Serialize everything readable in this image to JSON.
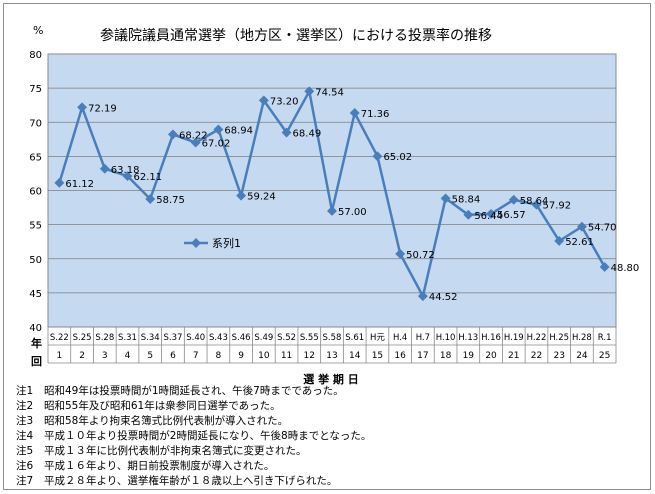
{
  "chart_data": {
    "type": "line",
    "title": "参議院議員通常選挙（地方区・選挙区）における投票率の推移",
    "ylabel": "%",
    "xlabel": "選 挙 期 日",
    "ylim": [
      40,
      80
    ],
    "yticks": [
      40,
      45,
      50,
      55,
      60,
      65,
      70,
      75,
      80
    ],
    "grid": true,
    "legend_position": "center-left",
    "row_header_top": "年",
    "row_header_bottom": "回",
    "categories": [
      "S.22",
      "S.25",
      "S.28",
      "S.31",
      "S.34",
      "S.37",
      "S.40",
      "S.43",
      "S.46",
      "S.49",
      "S.52",
      "S.55",
      "S.58",
      "S.61",
      "H元",
      "H.4",
      "H.7",
      "H.10",
      "H.13",
      "H.16",
      "H.19",
      "H.22",
      "H.25",
      "H.28",
      "R.1"
    ],
    "sessions": [
      "1",
      "2",
      "3",
      "4",
      "5",
      "6",
      "7",
      "8",
      "9",
      "10",
      "11",
      "12",
      "13",
      "14",
      "15",
      "16",
      "17",
      "18",
      "19",
      "20",
      "21",
      "22",
      "23",
      "24",
      "25"
    ],
    "series": [
      {
        "name": "系列1",
        "values": [
          61.12,
          72.19,
          63.18,
          62.11,
          58.75,
          68.22,
          67.02,
          68.94,
          59.24,
          73.2,
          68.49,
          74.54,
          57.0,
          71.36,
          65.02,
          50.72,
          44.52,
          58.84,
          56.44,
          56.57,
          58.64,
          57.92,
          52.61,
          54.7,
          48.8
        ],
        "labels": [
          "61.12",
          "72.19",
          "63.18",
          "62.11",
          "58.75",
          "68.22",
          "67.02",
          "68.94",
          "59.24",
          "73.20",
          "68.49",
          "74.54",
          "57.00",
          "71.36",
          "65.02",
          "50.72",
          "44.52",
          "58.84",
          "56.44",
          "56.57",
          "58.64",
          "57.92",
          "52.61",
          "54.70",
          "48.80"
        ],
        "color": "#4a7ebb"
      }
    ],
    "plot_bg": "#c5d9f1",
    "grid_color": "#7f7f7f"
  },
  "notes": [
    {
      "id": "注1",
      "text": "昭和49年は投票時間が1時間延長され、午後7時までであった。"
    },
    {
      "id": "注2",
      "text": "昭和55年及び昭和61年は衆参同日選挙であった。"
    },
    {
      "id": "注3",
      "text": "昭和58年より拘束名簿式比例代表制が導入された。"
    },
    {
      "id": "注4",
      "text": "平成１０年より投票時間が2時間延長になり、午後8時までとなった。"
    },
    {
      "id": "注5",
      "text": "平成１３年に比例代表制が非拘束名簿式に変更された。"
    },
    {
      "id": "注6",
      "text": "平成１６年より、期日前投票制度が導入された。"
    },
    {
      "id": "注7",
      "text": "平成２８年より、選挙権年齢が１８歳以上へ引き下げられた。"
    }
  ]
}
